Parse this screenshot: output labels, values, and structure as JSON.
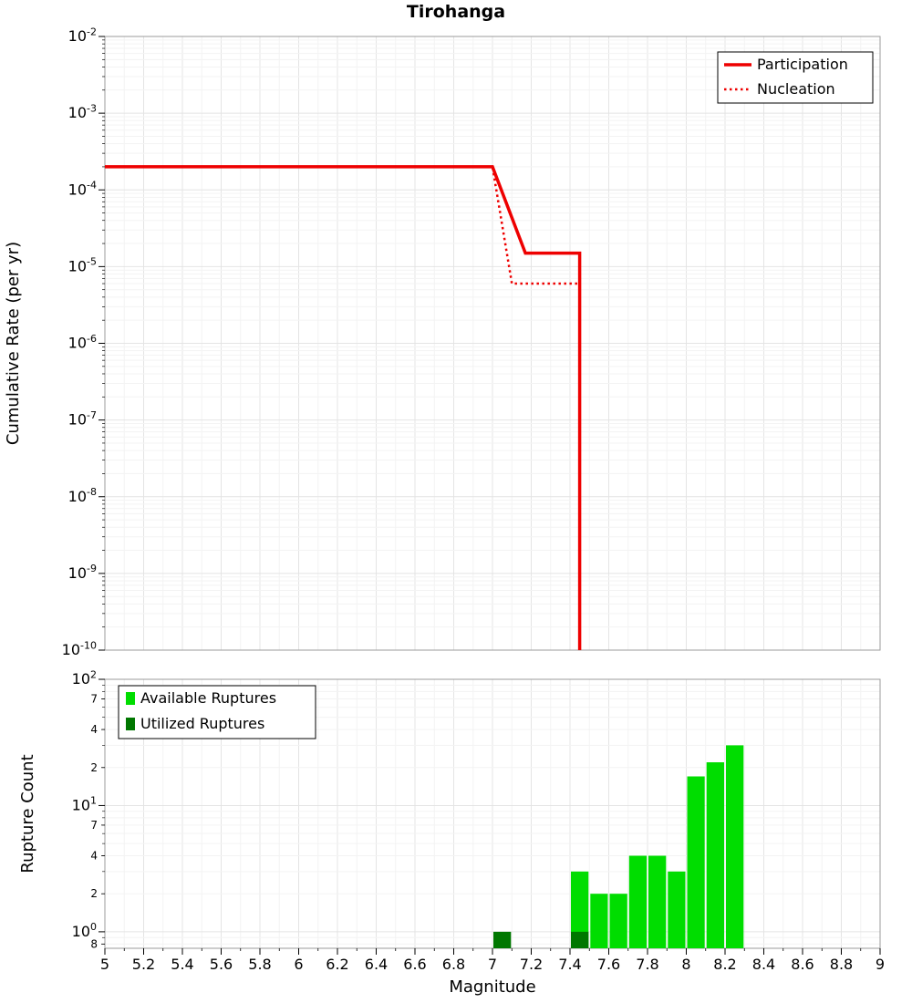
{
  "chart_data": [
    {
      "type": "line",
      "title": "Tirohanga",
      "ylabel": "Cumulative Rate (per yr)",
      "xlabel": "",
      "xlim": [
        5,
        9
      ],
      "y_scale": "log",
      "ylim": [
        1e-10,
        0.01
      ],
      "y_tick_exponents": [
        -2,
        -3,
        -4,
        -5,
        -6,
        -7,
        -8,
        -9,
        -10
      ],
      "x_ticks": [
        "5",
        "5.2",
        "5.4",
        "5.6",
        "5.8",
        "6",
        "6.2",
        "6.4",
        "6.6",
        "6.8",
        "7",
        "7.2",
        "7.4",
        "7.6",
        "7.8",
        "8",
        "8.2",
        "8.4",
        "8.6",
        "8.8",
        "9"
      ],
      "grid": true,
      "legend_position": "top-right",
      "series": [
        {
          "name": "Participation",
          "color": "#ee0000",
          "line_style": "solid",
          "line_width": 3.5,
          "points": [
            [
              5.0,
              0.0002
            ],
            [
              7.0,
              0.0002
            ],
            [
              7.17,
              1.5e-05
            ],
            [
              7.45,
              1.5e-05
            ],
            [
              7.45,
              5e-11
            ]
          ]
        },
        {
          "name": "Nucleation",
          "color": "#ee0000",
          "line_style": "dotted",
          "line_width": 2.5,
          "points": [
            [
              5.0,
              0.0002
            ],
            [
              7.0,
              0.0002
            ],
            [
              7.1,
              6e-06
            ],
            [
              7.45,
              6e-06
            ],
            [
              7.45,
              5e-11
            ]
          ]
        }
      ]
    },
    {
      "type": "bar",
      "title": "",
      "ylabel": "Rupture Count",
      "xlabel": "Magnitude",
      "xlim": [
        5,
        9
      ],
      "y_scale": "log",
      "ylim": [
        0.74,
        100
      ],
      "y_major_tick_exponents": [
        0,
        1,
        2
      ],
      "y_minor_tick_labels": [
        {
          "value": 0.8,
          "label": "8"
        },
        {
          "value": 2,
          "label": "2"
        },
        {
          "value": 4,
          "label": "4"
        },
        {
          "value": 7,
          "label": "7"
        },
        {
          "value": 20,
          "label": "2"
        },
        {
          "value": 40,
          "label": "4"
        },
        {
          "value": 70,
          "label": "7"
        }
      ],
      "x_ticks": [
        "5",
        "5.2",
        "5.4",
        "5.6",
        "5.8",
        "6",
        "6.2",
        "6.4",
        "6.6",
        "6.8",
        "7",
        "7.2",
        "7.4",
        "7.6",
        "7.8",
        "8",
        "8.2",
        "8.4",
        "8.6",
        "8.8",
        "9"
      ],
      "grid": true,
      "legend_position": "top-left",
      "series": [
        {
          "name": "Available Ruptures",
          "color": "#00dd00",
          "bin_width": 0.1,
          "bars": [
            {
              "bin_start": 7.4,
              "bin_end": 7.5,
              "count": 3
            },
            {
              "bin_start": 7.5,
              "bin_end": 7.6,
              "count": 2
            },
            {
              "bin_start": 7.6,
              "bin_end": 7.7,
              "count": 2
            },
            {
              "bin_start": 7.7,
              "bin_end": 7.8,
              "count": 4
            },
            {
              "bin_start": 7.8,
              "bin_end": 7.9,
              "count": 4
            },
            {
              "bin_start": 7.9,
              "bin_end": 8.0,
              "count": 3
            },
            {
              "bin_start": 8.0,
              "bin_end": 8.1,
              "count": 17
            },
            {
              "bin_start": 8.1,
              "bin_end": 8.2,
              "count": 22
            },
            {
              "bin_start": 8.2,
              "bin_end": 8.3,
              "count": 30
            }
          ]
        },
        {
          "name": "Utilized Ruptures",
          "color": "#007700",
          "bin_width": 0.1,
          "bars": [
            {
              "bin_start": 7.0,
              "bin_end": 7.1,
              "count": 1
            },
            {
              "bin_start": 7.4,
              "bin_end": 7.5,
              "count": 1
            }
          ]
        }
      ]
    }
  ]
}
